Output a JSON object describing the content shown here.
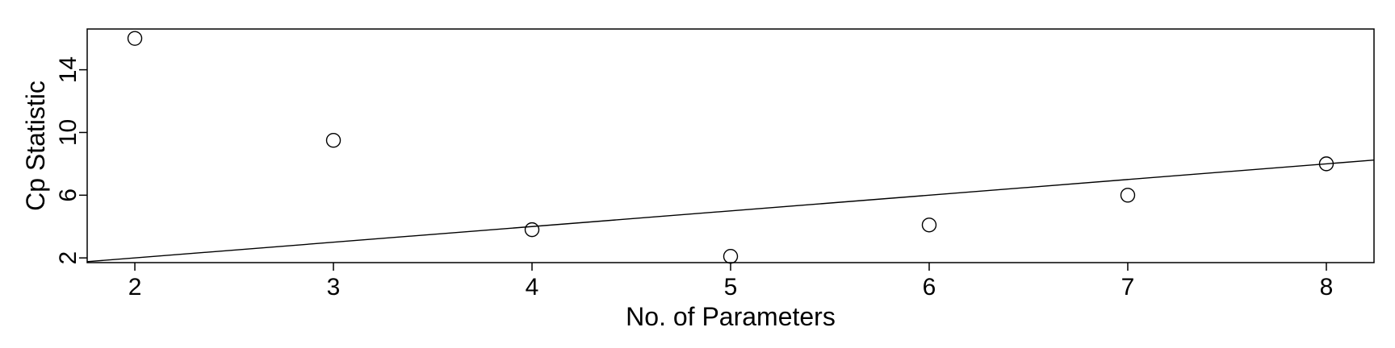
{
  "chart_data": {
    "type": "scatter",
    "title": "",
    "xlabel": "No. of Parameters",
    "ylabel": "Cp Statistic",
    "x": [
      2,
      3,
      4,
      5,
      6,
      7,
      8
    ],
    "y": [
      16.0,
      9.5,
      3.8,
      2.1,
      4.1,
      6.0,
      8.0
    ],
    "xlim": [
      1.76,
      8.24
    ],
    "ylim": [
      1.7,
      16.6
    ],
    "xticks": [
      2,
      3,
      4,
      5,
      6,
      7,
      8
    ],
    "yticks": [
      2,
      6,
      10,
      14
    ],
    "reference_line": {
      "type": "y=x"
    },
    "grid": false,
    "legend": "none",
    "colors": {
      "points": "#000000",
      "line": "#000000",
      "axes": "#000000"
    }
  }
}
